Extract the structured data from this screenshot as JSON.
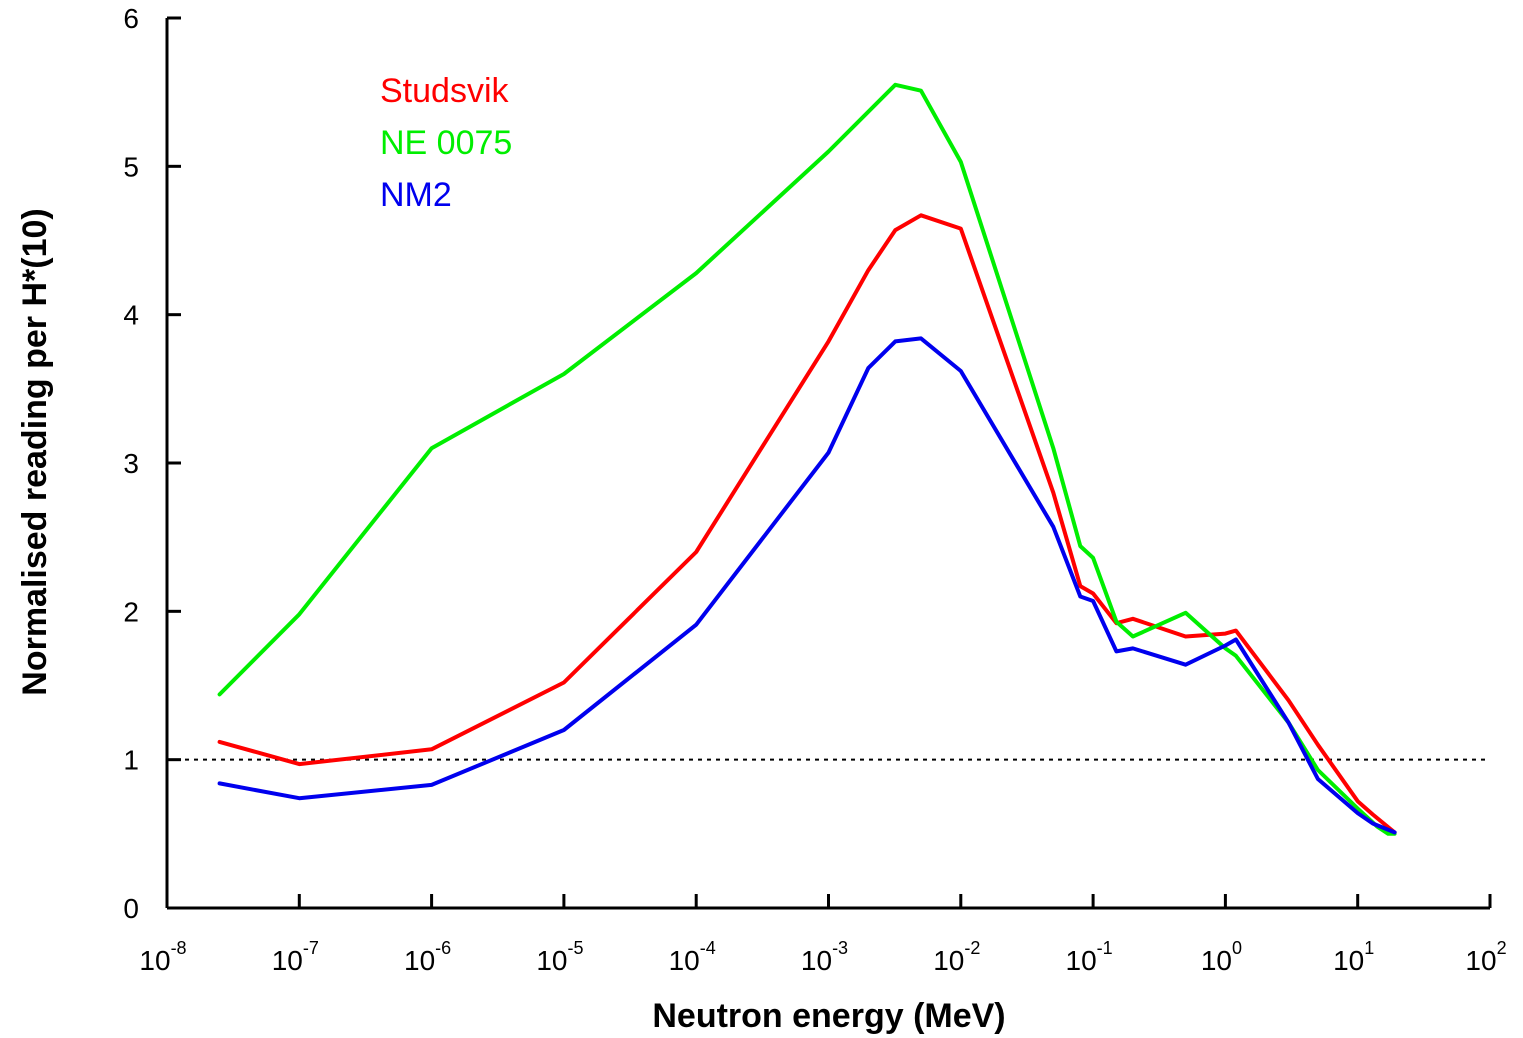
{
  "chart_data": {
    "type": "line",
    "xlabel": "Neutron energy (MeV)",
    "ylabel": "Normalised reading per H*(10)",
    "xscale": "log",
    "xlim": [
      1e-08,
      100
    ],
    "ylim": [
      0,
      6
    ],
    "x_ticks": [
      {
        "base": "10",
        "exp": "-8",
        "value": 1e-08
      },
      {
        "base": "10",
        "exp": "-7",
        "value": 1e-07
      },
      {
        "base": "10",
        "exp": "-6",
        "value": 1e-06
      },
      {
        "base": "10",
        "exp": "-5",
        "value": 1e-05
      },
      {
        "base": "10",
        "exp": "-4",
        "value": 0.0001
      },
      {
        "base": "10",
        "exp": "-3",
        "value": 0.001
      },
      {
        "base": "10",
        "exp": "-2",
        "value": 0.01
      },
      {
        "base": "10",
        "exp": "-1",
        "value": 0.1
      },
      {
        "base": "10",
        "exp": "0",
        "value": 1
      },
      {
        "base": "10",
        "exp": "1",
        "value": 10
      },
      {
        "base": "10",
        "exp": "2",
        "value": 100
      }
    ],
    "y_ticks": [
      "0",
      "1",
      "2",
      "3",
      "4",
      "5",
      "6"
    ],
    "reference_line": {
      "y": 1,
      "style": "dotted"
    },
    "legend": {
      "placement": "top-left"
    },
    "grid": false,
    "series": [
      {
        "name": "Studsvik",
        "color": "#ff0000",
        "points": [
          [
            2.5e-08,
            1.12
          ],
          [
            1e-07,
            0.97
          ],
          [
            1e-06,
            1.07
          ],
          [
            1e-05,
            1.52
          ],
          [
            0.0001,
            2.4
          ],
          [
            0.001,
            3.82
          ],
          [
            0.002,
            4.3
          ],
          [
            0.0032,
            4.57
          ],
          [
            0.005,
            4.67
          ],
          [
            0.01,
            4.58
          ],
          [
            0.05,
            2.8
          ],
          [
            0.08,
            2.17
          ],
          [
            0.1,
            2.12
          ],
          [
            0.15,
            1.92
          ],
          [
            0.2,
            1.95
          ],
          [
            0.5,
            1.83
          ],
          [
            1,
            1.85
          ],
          [
            1.2,
            1.87
          ],
          [
            3,
            1.4
          ],
          [
            5,
            1.1
          ],
          [
            10,
            0.72
          ],
          [
            13,
            0.63
          ],
          [
            19,
            0.51
          ]
        ]
      },
      {
        "name": "NE 0075",
        "color": "#00ee00",
        "points": [
          [
            2.5e-08,
            1.44
          ],
          [
            1e-07,
            1.98
          ],
          [
            1e-06,
            3.1
          ],
          [
            1e-05,
            3.6
          ],
          [
            0.0001,
            4.28
          ],
          [
            0.001,
            5.1
          ],
          [
            0.0032,
            5.55
          ],
          [
            0.005,
            5.51
          ],
          [
            0.01,
            5.03
          ],
          [
            0.05,
            3.1
          ],
          [
            0.08,
            2.44
          ],
          [
            0.1,
            2.36
          ],
          [
            0.15,
            1.93
          ],
          [
            0.2,
            1.83
          ],
          [
            0.5,
            1.99
          ],
          [
            1,
            1.75
          ],
          [
            1.2,
            1.7
          ],
          [
            3,
            1.25
          ],
          [
            5,
            0.93
          ],
          [
            10,
            0.67
          ],
          [
            14,
            0.55
          ],
          [
            17,
            0.5
          ],
          [
            19,
            0.5
          ]
        ]
      },
      {
        "name": "NM2",
        "color": "#0000ee",
        "points": [
          [
            2.5e-08,
            0.84
          ],
          [
            1e-07,
            0.74
          ],
          [
            1e-06,
            0.83
          ],
          [
            1e-05,
            1.2
          ],
          [
            0.0001,
            1.91
          ],
          [
            0.001,
            3.07
          ],
          [
            0.002,
            3.64
          ],
          [
            0.0032,
            3.82
          ],
          [
            0.005,
            3.84
          ],
          [
            0.01,
            3.62
          ],
          [
            0.05,
            2.57
          ],
          [
            0.08,
            2.1
          ],
          [
            0.1,
            2.07
          ],
          [
            0.15,
            1.73
          ],
          [
            0.2,
            1.75
          ],
          [
            0.5,
            1.64
          ],
          [
            1,
            1.77
          ],
          [
            1.2,
            1.81
          ],
          [
            3,
            1.25
          ],
          [
            5,
            0.87
          ],
          [
            10,
            0.64
          ],
          [
            13,
            0.57
          ],
          [
            19,
            0.51
          ]
        ]
      }
    ]
  }
}
